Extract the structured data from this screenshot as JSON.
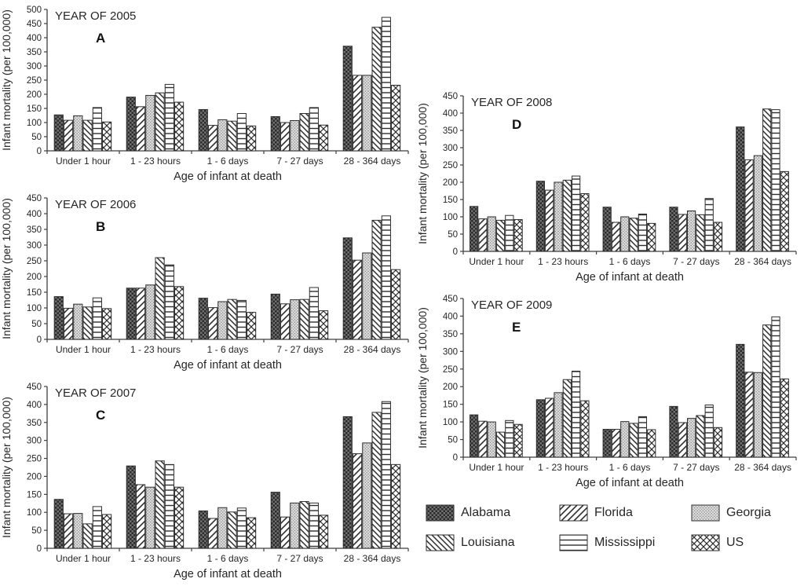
{
  "figure": {
    "ylabel": "Infant mortality (per 100,000)",
    "xlabel": "Age of infant at death"
  },
  "chart_data": [
    {
      "type": "bar",
      "panel_label": "A",
      "title": "YEAR OF 2005",
      "xlabel": "Age of infant at death",
      "ylabel": "Infant mortality (per 100,000)",
      "ylim": [
        0,
        500
      ],
      "ytick_step": 50,
      "grid": false,
      "categories": [
        "Under 1 hour",
        "1 - 23 hours",
        "1 - 6 days",
        "7 - 27 days",
        "28 - 364 days"
      ],
      "series": [
        {
          "name": "Alabama",
          "pattern": "alabama",
          "values": [
            127,
            190,
            146,
            121,
            370
          ]
        },
        {
          "name": "Florida",
          "pattern": "florida",
          "values": [
            108,
            156,
            90,
            100,
            267
          ]
        },
        {
          "name": "Georgia",
          "pattern": "georgia",
          "values": [
            124,
            196,
            110,
            107,
            267
          ]
        },
        {
          "name": "Louisiana",
          "pattern": "louisiana",
          "values": [
            108,
            205,
            105,
            132,
            437
          ]
        },
        {
          "name": "Mississippi",
          "pattern": "mississippi",
          "values": [
            153,
            235,
            132,
            153,
            472
          ]
        },
        {
          "name": "US",
          "pattern": "us",
          "values": [
            102,
            172,
            88,
            91,
            232
          ]
        }
      ]
    },
    {
      "type": "bar",
      "panel_label": "B",
      "title": "YEAR OF 2006",
      "xlabel": "Age of infant at death",
      "ylabel": "Infant mortality (per 100,000)",
      "ylim": [
        0,
        450
      ],
      "ytick_step": 50,
      "grid": false,
      "categories": [
        "Under 1 hour",
        "1 - 23 hours",
        "1 - 6 days",
        "7 - 27 days",
        "28 - 364 days"
      ],
      "series": [
        {
          "name": "Alabama",
          "pattern": "alabama",
          "values": [
            136,
            163,
            131,
            144,
            323
          ]
        },
        {
          "name": "Florida",
          "pattern": "florida",
          "values": [
            99,
            163,
            101,
            113,
            252
          ]
        },
        {
          "name": "Georgia",
          "pattern": "georgia",
          "values": [
            112,
            173,
            120,
            126,
            275
          ]
        },
        {
          "name": "Louisiana",
          "pattern": "louisiana",
          "values": [
            103,
            260,
            127,
            127,
            379
          ]
        },
        {
          "name": "Mississippi",
          "pattern": "mississippi",
          "values": [
            132,
            237,
            124,
            165,
            393
          ]
        },
        {
          "name": "US",
          "pattern": "us",
          "values": [
            98,
            168,
            86,
            91,
            222
          ]
        }
      ]
    },
    {
      "type": "bar",
      "panel_label": "C",
      "title": "YEAR OF 2007",
      "xlabel": "Age of infant at death",
      "ylabel": "Infant mortality (per 100,000)",
      "ylim": [
        0,
        450
      ],
      "ytick_step": 50,
      "grid": false,
      "categories": [
        "Under 1 hour",
        "1 - 23 hours",
        "1 - 6 days",
        "7 - 27 days",
        "28 - 364 days"
      ],
      "series": [
        {
          "name": "Alabama",
          "pattern": "alabama",
          "values": [
            136,
            229,
            104,
            156,
            366
          ]
        },
        {
          "name": "Florida",
          "pattern": "florida",
          "values": [
            96,
            177,
            83,
            87,
            263
          ]
        },
        {
          "name": "Georgia",
          "pattern": "georgia",
          "values": [
            97,
            170,
            113,
            126,
            293
          ]
        },
        {
          "name": "Louisiana",
          "pattern": "louisiana",
          "values": [
            68,
            243,
            101,
            130,
            378
          ]
        },
        {
          "name": "Mississippi",
          "pattern": "mississippi",
          "values": [
            116,
            233,
            112,
            126,
            408
          ]
        },
        {
          "name": "US",
          "pattern": "us",
          "values": [
            94,
            170,
            85,
            92,
            233
          ]
        }
      ]
    },
    {
      "type": "bar",
      "panel_label": "D",
      "title": "YEAR OF 2008",
      "xlabel": "Age of infant at death",
      "ylabel": "Infant mortality (per 100,000)",
      "ylim": [
        0,
        450
      ],
      "ytick_step": 50,
      "grid": false,
      "categories": [
        "Under 1 hour",
        "1 - 23 hours",
        "1 - 6 days",
        "7 - 27 days",
        "28 - 364 days"
      ],
      "series": [
        {
          "name": "Alabama",
          "pattern": "alabama",
          "values": [
            130,
            203,
            128,
            128,
            360
          ]
        },
        {
          "name": "Florida",
          "pattern": "florida",
          "values": [
            94,
            177,
            84,
            107,
            265
          ]
        },
        {
          "name": "Georgia",
          "pattern": "georgia",
          "values": [
            100,
            200,
            100,
            117,
            277
          ]
        },
        {
          "name": "Louisiana",
          "pattern": "louisiana",
          "values": [
            90,
            206,
            96,
            106,
            412
          ]
        },
        {
          "name": "Mississippi",
          "pattern": "mississippi",
          "values": [
            104,
            218,
            108,
            153,
            410
          ]
        },
        {
          "name": "US",
          "pattern": "us",
          "values": [
            92,
            167,
            81,
            84,
            231
          ]
        }
      ]
    },
    {
      "type": "bar",
      "panel_label": "E",
      "title": "YEAR OF 2009",
      "xlabel": "Age of infant at death",
      "ylabel": "Infant mortality (per 100,000)",
      "ylim": [
        0,
        450
      ],
      "ytick_step": 50,
      "grid": false,
      "categories": [
        "Under 1 hour",
        "1 - 23 hours",
        "1 - 6 days",
        "7 - 27 days",
        "28 - 364 days"
      ],
      "series": [
        {
          "name": "Alabama",
          "pattern": "alabama",
          "values": [
            120,
            163,
            79,
            144,
            320
          ]
        },
        {
          "name": "Florida",
          "pattern": "florida",
          "values": [
            102,
            167,
            79,
            98,
            241
          ]
        },
        {
          "name": "Georgia",
          "pattern": "georgia",
          "values": [
            100,
            183,
            101,
            110,
            240
          ]
        },
        {
          "name": "Louisiana",
          "pattern": "louisiana",
          "values": [
            71,
            220,
            96,
            118,
            375
          ]
        },
        {
          "name": "Mississippi",
          "pattern": "mississippi",
          "values": [
            104,
            244,
            115,
            148,
            398
          ]
        },
        {
          "name": "US",
          "pattern": "us",
          "values": [
            93,
            160,
            78,
            84,
            222
          ]
        }
      ]
    }
  ],
  "legend": {
    "entries": [
      {
        "label": "Alabama",
        "pattern": "alabama"
      },
      {
        "label": "Florida",
        "pattern": "florida"
      },
      {
        "label": "Georgia",
        "pattern": "georgia"
      },
      {
        "label": "Louisiana",
        "pattern": "louisiana"
      },
      {
        "label": "Mississippi",
        "pattern": "mississippi"
      },
      {
        "label": "US",
        "pattern": "us"
      }
    ]
  },
  "colors": {
    "axis": "#3f3f3f",
    "text": "#262626",
    "bar_stroke": "#2e2e2e",
    "pattern_dark": "#2e2e2e",
    "pattern_mid": "#6e6e6e",
    "georgia_bg": "#e4e4e4",
    "georgia_dot": "#8c8c8c",
    "background": "#ffffff"
  }
}
